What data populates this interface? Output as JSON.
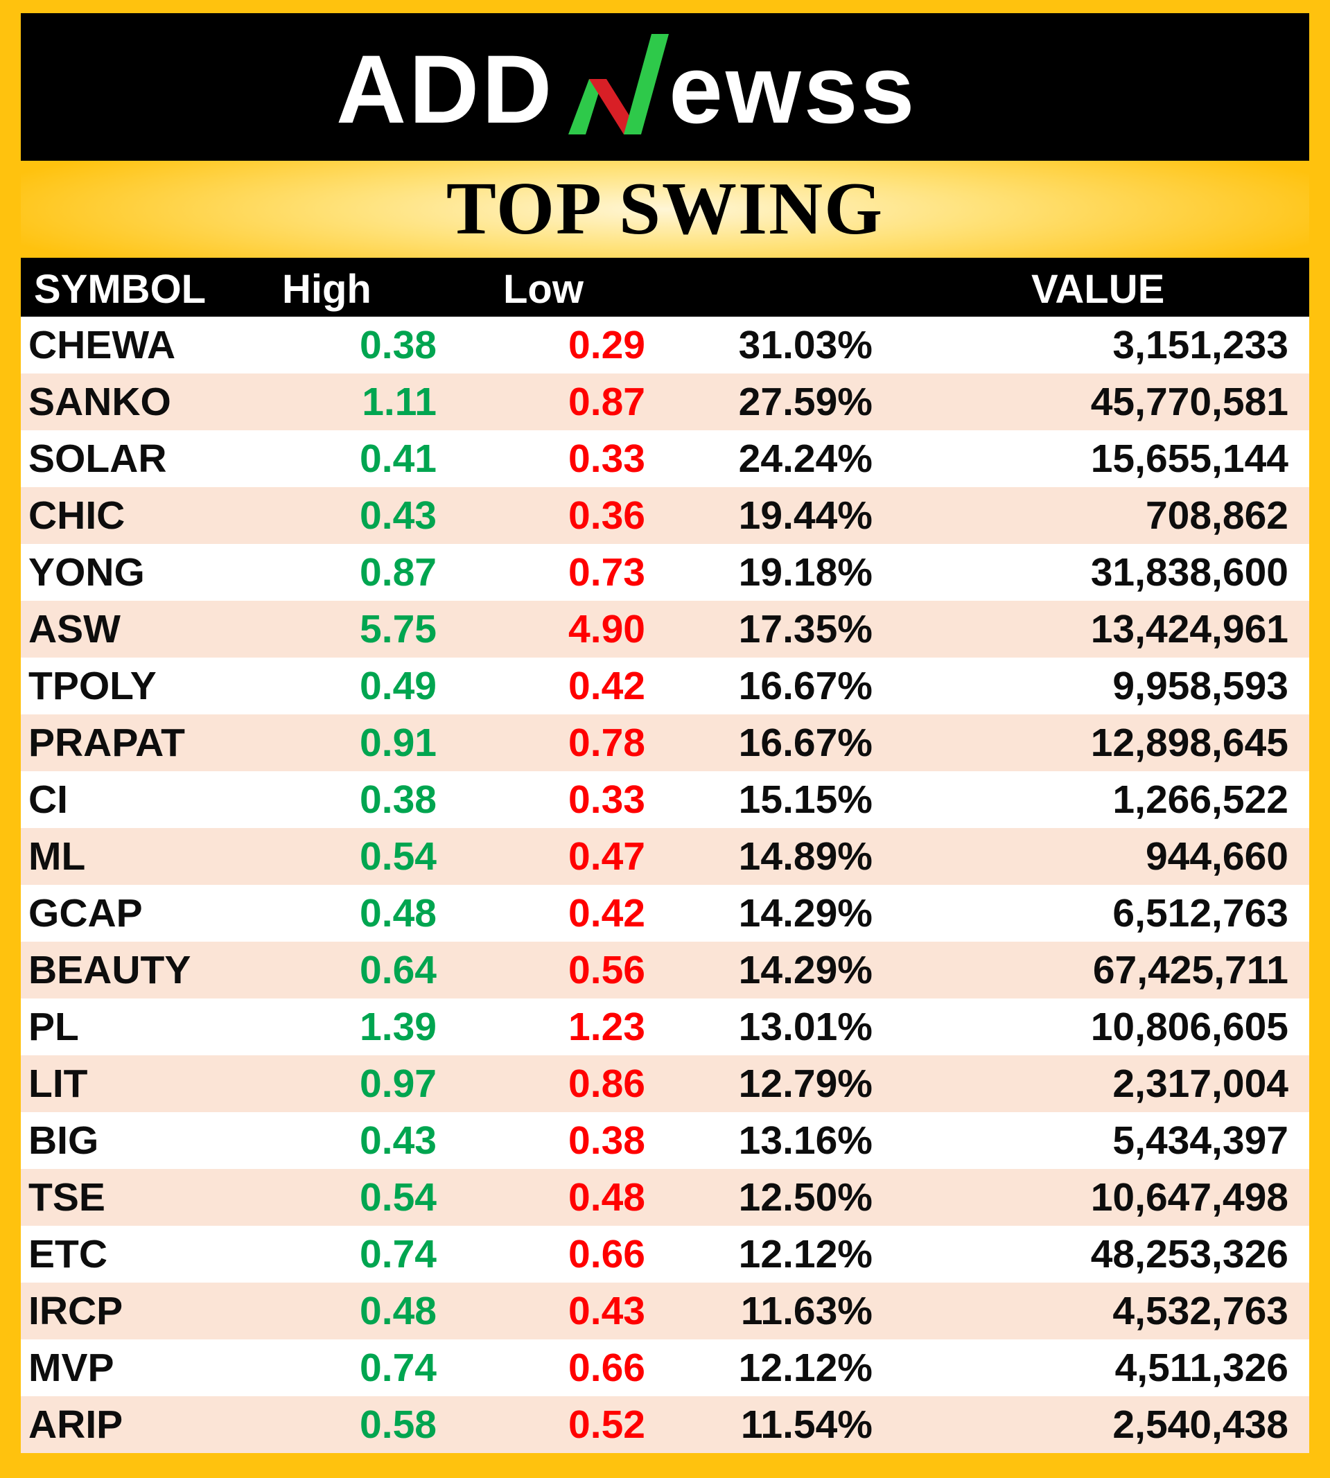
{
  "brand": {
    "logo_text": "ADDNewss",
    "logo_part_left": "ADD",
    "logo_part_n": "N",
    "logo_part_right": "ewss",
    "logo_colors": {
      "text": "#ffffff",
      "n_green": "#2ec94a",
      "n_red": "#d81f26",
      "background": "#000000"
    }
  },
  "page": {
    "title": "TOP SWING",
    "background_color": "#ffc20e"
  },
  "table": {
    "headers": {
      "symbol": "SYMBOL",
      "high": "High",
      "low": "Low",
      "pct": "",
      "value": "VALUE"
    },
    "colors": {
      "high": "#00a550",
      "low": "#ff0000",
      "row_alt": "#fbe4d6",
      "row": "#ffffff",
      "header_bg": "#000000"
    },
    "rows": [
      {
        "symbol": "CHEWA",
        "high": "0.38",
        "low": "0.29",
        "pct": "31.03%",
        "value": "3,151,233"
      },
      {
        "symbol": "SANKO",
        "high": "1.11",
        "low": "0.87",
        "pct": "27.59%",
        "value": "45,770,581"
      },
      {
        "symbol": "SOLAR",
        "high": "0.41",
        "low": "0.33",
        "pct": "24.24%",
        "value": "15,655,144"
      },
      {
        "symbol": "CHIC",
        "high": "0.43",
        "low": "0.36",
        "pct": "19.44%",
        "value": "708,862"
      },
      {
        "symbol": "YONG",
        "high": "0.87",
        "low": "0.73",
        "pct": "19.18%",
        "value": "31,838,600"
      },
      {
        "symbol": "ASW",
        "high": "5.75",
        "low": "4.90",
        "pct": "17.35%",
        "value": "13,424,961"
      },
      {
        "symbol": "TPOLY",
        "high": "0.49",
        "low": "0.42",
        "pct": "16.67%",
        "value": "9,958,593"
      },
      {
        "symbol": "PRAPAT",
        "high": "0.91",
        "low": "0.78",
        "pct": "16.67%",
        "value": "12,898,645"
      },
      {
        "symbol": "CI",
        "high": "0.38",
        "low": "0.33",
        "pct": "15.15%",
        "value": "1,266,522"
      },
      {
        "symbol": "ML",
        "high": "0.54",
        "low": "0.47",
        "pct": "14.89%",
        "value": "944,660"
      },
      {
        "symbol": "GCAP",
        "high": "0.48",
        "low": "0.42",
        "pct": "14.29%",
        "value": "6,512,763"
      },
      {
        "symbol": "BEAUTY",
        "high": "0.64",
        "low": "0.56",
        "pct": "14.29%",
        "value": "67,425,711"
      },
      {
        "symbol": "PL",
        "high": "1.39",
        "low": "1.23",
        "pct": "13.01%",
        "value": "10,806,605"
      },
      {
        "symbol": "LIT",
        "high": "0.97",
        "low": "0.86",
        "pct": "12.79%",
        "value": "2,317,004"
      },
      {
        "symbol": "BIG",
        "high": "0.43",
        "low": "0.38",
        "pct": "13.16%",
        "value": "5,434,397"
      },
      {
        "symbol": "TSE",
        "high": "0.54",
        "low": "0.48",
        "pct": "12.50%",
        "value": "10,647,498"
      },
      {
        "symbol": "ETC",
        "high": "0.74",
        "low": "0.66",
        "pct": "12.12%",
        "value": "48,253,326"
      },
      {
        "symbol": "IRCP",
        "high": "0.48",
        "low": "0.43",
        "pct": "11.63%",
        "value": "4,532,763"
      },
      {
        "symbol": "MVP",
        "high": "0.74",
        "low": "0.66",
        "pct": "12.12%",
        "value": "4,511,326"
      },
      {
        "symbol": "ARIP",
        "high": "0.58",
        "low": "0.52",
        "pct": "11.54%",
        "value": "2,540,438"
      }
    ]
  },
  "chart_data": {
    "type": "table",
    "title": "TOP SWING",
    "columns": [
      "SYMBOL",
      "High",
      "Low",
      "",
      "VALUE"
    ],
    "rows": [
      [
        "CHEWA",
        0.38,
        0.29,
        "31.03%",
        3151233
      ],
      [
        "SANKO",
        1.11,
        0.87,
        "27.59%",
        45770581
      ],
      [
        "SOLAR",
        0.41,
        0.33,
        "24.24%",
        15655144
      ],
      [
        "CHIC",
        0.43,
        0.36,
        "19.44%",
        708862
      ],
      [
        "YONG",
        0.87,
        0.73,
        "19.18%",
        31838600
      ],
      [
        "ASW",
        5.75,
        4.9,
        "17.35%",
        13424961
      ],
      [
        "TPOLY",
        0.49,
        0.42,
        "16.67%",
        9958593
      ],
      [
        "PRAPAT",
        0.91,
        0.78,
        "16.67%",
        12898645
      ],
      [
        "CI",
        0.38,
        0.33,
        "15.15%",
        1266522
      ],
      [
        "ML",
        0.54,
        0.47,
        "14.89%",
        944660
      ],
      [
        "GCAP",
        0.48,
        0.42,
        "14.29%",
        6512763
      ],
      [
        "BEAUTY",
        0.64,
        0.56,
        "14.29%",
        67425711
      ],
      [
        "PL",
        1.39,
        1.23,
        "13.01%",
        10806605
      ],
      [
        "LIT",
        0.97,
        0.86,
        "12.79%",
        2317004
      ],
      [
        "BIG",
        0.43,
        0.38,
        "13.16%",
        5434397
      ],
      [
        "TSE",
        0.54,
        0.48,
        "12.50%",
        10647498
      ],
      [
        "ETC",
        0.74,
        0.66,
        "12.12%",
        48253326
      ],
      [
        "IRCP",
        0.48,
        0.43,
        "11.63%",
        4532763
      ],
      [
        "MVP",
        0.74,
        0.66,
        "12.12%",
        4511326
      ],
      [
        "ARIP",
        0.58,
        0.52,
        "11.54%",
        2540438
      ]
    ]
  }
}
